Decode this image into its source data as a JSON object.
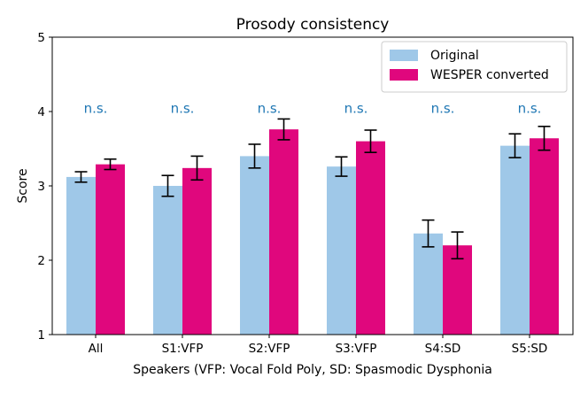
{
  "chart_data": {
    "type": "bar",
    "title": "Prosody consistency",
    "xlabel": "Speakers (VFP:  Vocal Fold Poly, SD: Spasmodic Dysphonia",
    "ylabel": "Score",
    "ylim": [
      1,
      5
    ],
    "yticks": [
      "1",
      "2",
      "3",
      "4",
      "5"
    ],
    "categories": [
      "All",
      "S1:VFP",
      "S2:VFP",
      "S3:VFP",
      "S4:SD",
      "S5:SD"
    ],
    "series": [
      {
        "name": "Original",
        "color": "#9fc8e8",
        "values": [
          3.12,
          3.0,
          3.4,
          3.26,
          2.36,
          3.54
        ],
        "errors": [
          0.07,
          0.14,
          0.16,
          0.13,
          0.18,
          0.16
        ]
      },
      {
        "name": "WESPER converted",
        "color": "#e0077d",
        "values": [
          3.29,
          3.24,
          3.76,
          3.6,
          2.2,
          3.64
        ],
        "errors": [
          0.07,
          0.16,
          0.14,
          0.15,
          0.18,
          0.16
        ]
      }
    ],
    "annotations": [
      "n.s.",
      "n.s.",
      "n.s.",
      "n.s.",
      "n.s.",
      "n.s."
    ],
    "annotation_color": "#1f77b4",
    "annotation_value": 4.04,
    "legend_position": "top-right",
    "grid": false
  }
}
